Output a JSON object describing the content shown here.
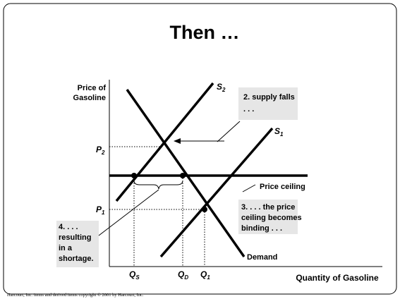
{
  "title": "Then …",
  "axes": {
    "y_label": [
      "Price of",
      "Gasoline"
    ],
    "x_label": "Quantity of Gasoline"
  },
  "curves": {
    "s2": {
      "main": "S",
      "sub": "2"
    },
    "s1": {
      "main": "S",
      "sub": "1"
    },
    "demand": "Demand",
    "ceiling": "Price ceiling"
  },
  "prices": {
    "p2": {
      "main": "P",
      "sub": "2"
    },
    "p1": {
      "main": "P",
      "sub": "1"
    }
  },
  "quantities": {
    "qs": {
      "main": "Q",
      "sub": "S"
    },
    "qd": {
      "main": "Q",
      "sub": "D"
    },
    "q1": {
      "main": "Q",
      "sub": "1"
    }
  },
  "annotations": {
    "step2": [
      "2.  supply falls",
      ". . ."
    ],
    "step3": [
      "3. . . . the price",
      "ceiling becomes",
      "binding . . ."
    ],
    "step4": [
      "4. . . .",
      "resulting",
      "in a",
      "shortage."
    ]
  },
  "footer": "Harcourt, Inc. items and derived items copyright © 2001 by Harcourt, Inc."
}
